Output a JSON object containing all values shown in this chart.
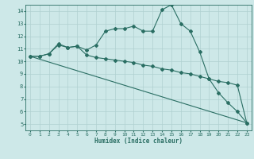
{
  "xlabel": "Humidex (Indice chaleur)",
  "xlim": [
    -0.5,
    23.5
  ],
  "ylim": [
    4.5,
    14.5
  ],
  "yticks": [
    5,
    6,
    7,
    8,
    9,
    10,
    11,
    12,
    13,
    14
  ],
  "xticks": [
    0,
    1,
    2,
    3,
    4,
    5,
    6,
    7,
    8,
    9,
    10,
    11,
    12,
    13,
    14,
    15,
    16,
    17,
    18,
    19,
    20,
    21,
    22,
    23
  ],
  "bg_color": "#cde8e8",
  "grid_color": "#b0d0d0",
  "line_color": "#2a6e63",
  "line1_x": [
    0,
    1,
    2,
    3,
    4,
    5,
    6,
    7,
    8,
    9,
    10,
    11,
    12,
    13,
    14,
    15,
    16,
    17,
    18,
    19,
    20,
    21,
    22,
    23
  ],
  "line1_y": [
    10.4,
    10.4,
    10.6,
    11.4,
    11.1,
    11.2,
    10.9,
    11.3,
    12.4,
    12.6,
    12.6,
    12.8,
    12.4,
    12.4,
    14.1,
    14.5,
    13.0,
    12.4,
    10.75,
    8.6,
    7.5,
    6.7,
    6.0,
    5.1
  ],
  "line2_x": [
    0,
    1,
    2,
    3,
    4,
    5,
    6,
    7,
    8,
    9,
    10,
    11,
    12,
    13,
    14,
    15,
    16,
    17,
    18,
    19,
    20,
    21,
    22,
    23
  ],
  "line2_y": [
    10.4,
    10.4,
    10.6,
    11.3,
    11.1,
    11.2,
    10.5,
    10.3,
    10.2,
    10.1,
    10.0,
    9.9,
    9.7,
    9.6,
    9.4,
    9.3,
    9.1,
    9.0,
    8.8,
    8.6,
    8.4,
    8.3,
    8.1,
    5.1
  ],
  "line3_x": [
    0,
    23
  ],
  "line3_y": [
    10.4,
    5.1
  ]
}
